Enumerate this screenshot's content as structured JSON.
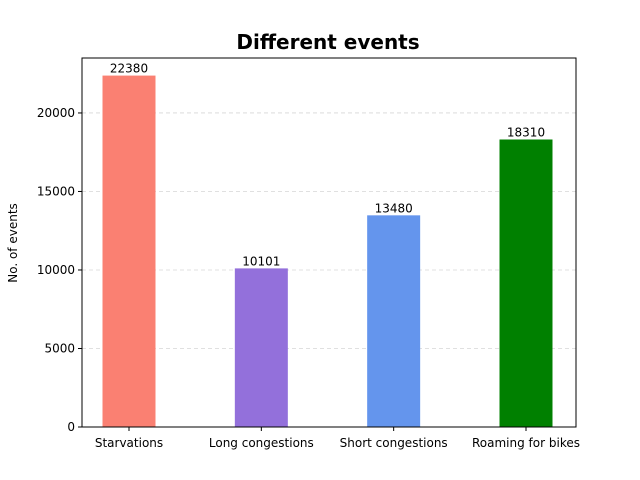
{
  "chart_data": {
    "type": "bar",
    "title": "Different events",
    "xlabel": "",
    "ylabel": "No. of events",
    "categories": [
      "Starvations",
      "Long congestions",
      "Short congestions",
      "Roaming for bikes"
    ],
    "values": [
      22380,
      10101,
      13480,
      18310
    ],
    "data_labels": [
      "22380",
      "10101",
      "13480",
      "18310"
    ],
    "colors": [
      "#fa8072",
      "#9370db",
      "#6495ed",
      "#008000"
    ],
    "ylim": [
      0,
      23500
    ],
    "yticks": [
      0,
      5000,
      10000,
      15000,
      20000
    ],
    "ytick_labels": [
      "0",
      "5000",
      "10000",
      "15000",
      "20000"
    ],
    "grid": "horizontal dashed",
    "legend": "none"
  }
}
